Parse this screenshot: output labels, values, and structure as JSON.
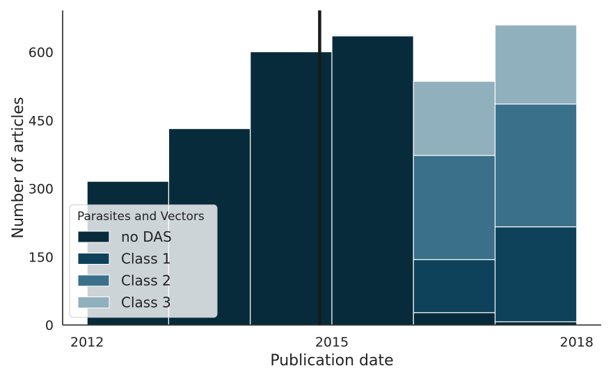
{
  "chart_data": {
    "type": "bar",
    "stacked": true,
    "bins": [
      {
        "start": 2012.0,
        "end": 2013.0
      },
      {
        "start": 2013.0,
        "end": 2014.0
      },
      {
        "start": 2014.0,
        "end": 2015.0
      },
      {
        "start": 2015.0,
        "end": 2016.0
      },
      {
        "start": 2016.0,
        "end": 2017.0
      },
      {
        "start": 2017.0,
        "end": 2018.0
      }
    ],
    "series": [
      {
        "name": "no DAS",
        "color": "#072b3b",
        "values": [
          316,
          432,
          601,
          636,
          27,
          7
        ]
      },
      {
        "name": "Class 1",
        "color": "#0e425a",
        "values": [
          0,
          0,
          0,
          2,
          117,
          209
        ]
      },
      {
        "name": "Class 2",
        "color": "#3a7089",
        "values": [
          0,
          0,
          0,
          2,
          229,
          270
        ]
      },
      {
        "name": "Class 3",
        "color": "#91b0bd",
        "values": [
          0,
          0,
          0,
          1,
          163,
          174
        ]
      }
    ],
    "vline": {
      "x": 2014.85,
      "color": "#1a1a1a"
    },
    "xticks": [
      {
        "value": 2012.0,
        "label": "2012"
      },
      {
        "value": 2015.0,
        "label": "2015"
      },
      {
        "value": 2018.0,
        "label": "2018"
      }
    ],
    "yticks": [
      0,
      150,
      300,
      450,
      600
    ],
    "xlim": [
      2011.7,
      2018.3
    ],
    "ylim": [
      0,
      692
    ],
    "xlabel": "Publication date",
    "ylabel": "Number of articles",
    "grid": false,
    "legend": {
      "title": "Parasites and Vectors",
      "position": "lower-left"
    }
  }
}
